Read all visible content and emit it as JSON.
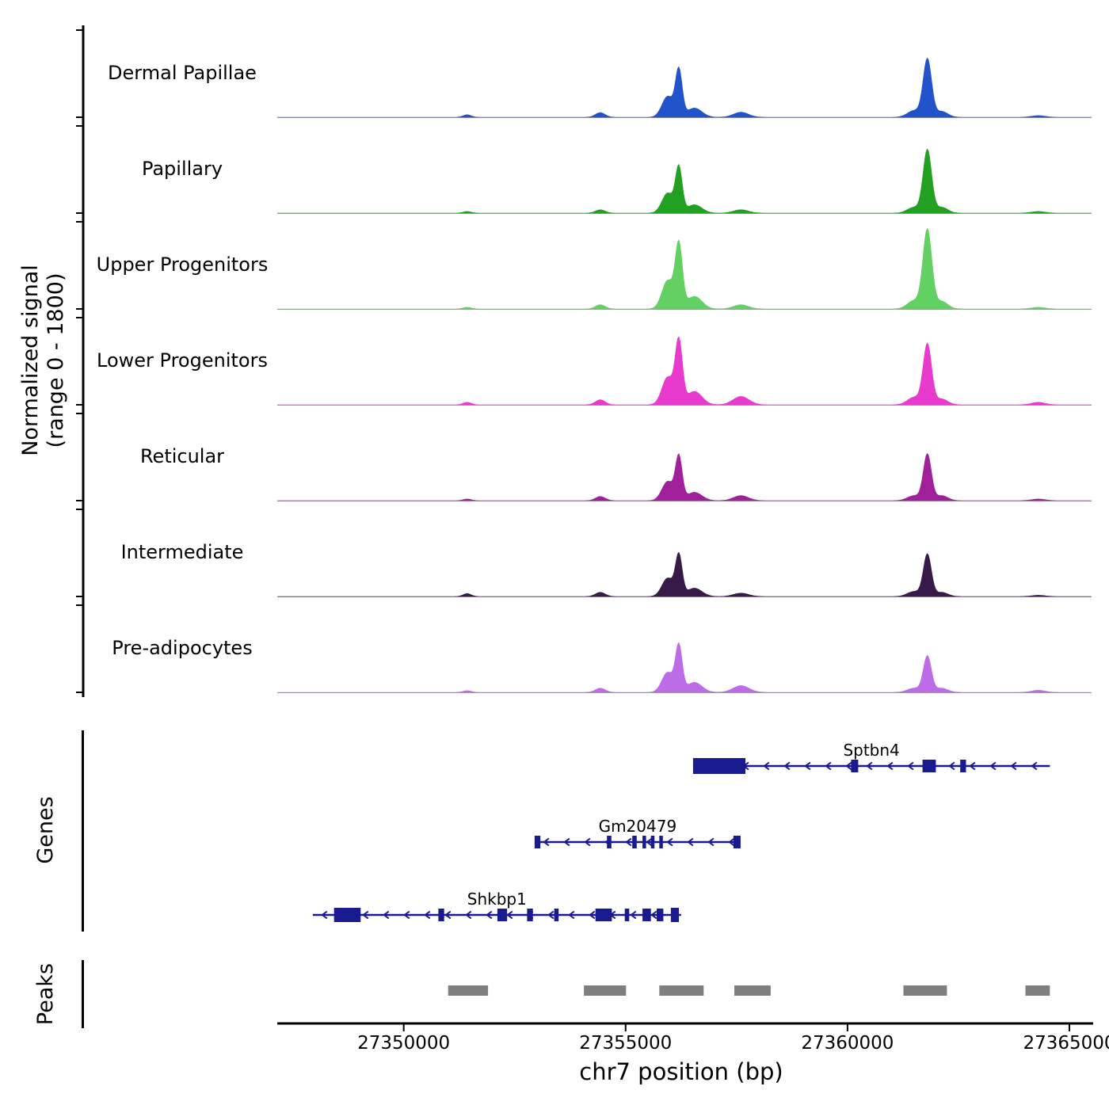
{
  "figure": {
    "ylabel_line1": "Normalized signal",
    "ylabel_line2": "(range 0 - 1800)",
    "genes_axis_label": "Genes",
    "peaks_axis_label": "Peaks"
  },
  "chart_data": {
    "type": "area",
    "title": "",
    "xlabel": "chr7 position (bp)",
    "ylabel": "Normalized signal (range 0 - 1800)",
    "x_range": [
      27347150,
      27365500
    ],
    "x_ticks": [
      27350000,
      27355000,
      27360000,
      27365000
    ],
    "y_range_per_track": [
      0,
      1800
    ],
    "grid": false,
    "gene_color": "#1a1a8f",
    "peak_color": "#7f7f7f",
    "baseline_color": "#9a9a9a",
    "tracks": [
      {
        "label": "Dermal Papillae",
        "color": "#2353cb",
        "peaks": [
          [
            27351430,
            90,
            0.03
          ],
          [
            27354430,
            110,
            0.055
          ],
          [
            27355950,
            130,
            0.25
          ],
          [
            27356200,
            75,
            0.55
          ],
          [
            27356550,
            170,
            0.11
          ],
          [
            27357600,
            170,
            0.06
          ],
          [
            27361500,
            150,
            0.08
          ],
          [
            27361800,
            95,
            0.69
          ],
          [
            27362120,
            140,
            0.07
          ],
          [
            27364300,
            150,
            0.02
          ]
        ]
      },
      {
        "label": "Papillary",
        "color": "#22a022",
        "peaks": [
          [
            27351430,
            90,
            0.02
          ],
          [
            27354430,
            110,
            0.04
          ],
          [
            27355950,
            130,
            0.24
          ],
          [
            27356200,
            75,
            0.53
          ],
          [
            27356550,
            170,
            0.1
          ],
          [
            27357600,
            170,
            0.04
          ],
          [
            27361500,
            150,
            0.07
          ],
          [
            27361800,
            95,
            0.75
          ],
          [
            27362120,
            140,
            0.07
          ],
          [
            27364300,
            150,
            0.02
          ]
        ]
      },
      {
        "label": "Upper Progenitors",
        "color": "#63d063",
        "peaks": [
          [
            27351430,
            90,
            0.02
          ],
          [
            27354430,
            110,
            0.05
          ],
          [
            27355950,
            130,
            0.34
          ],
          [
            27356200,
            80,
            0.75
          ],
          [
            27356550,
            170,
            0.15
          ],
          [
            27357600,
            170,
            0.05
          ],
          [
            27361500,
            150,
            0.1
          ],
          [
            27361800,
            100,
            0.94
          ],
          [
            27362120,
            140,
            0.09
          ],
          [
            27364300,
            150,
            0.02
          ]
        ]
      },
      {
        "label": "Lower Progenitors",
        "color": "#e83bce",
        "peaks": [
          [
            27351430,
            90,
            0.03
          ],
          [
            27354430,
            110,
            0.06
          ],
          [
            27355950,
            130,
            0.33
          ],
          [
            27356200,
            80,
            0.74
          ],
          [
            27356550,
            170,
            0.16
          ],
          [
            27357600,
            180,
            0.1
          ],
          [
            27361500,
            150,
            0.09
          ],
          [
            27361800,
            95,
            0.72
          ],
          [
            27362120,
            140,
            0.07
          ],
          [
            27364300,
            150,
            0.03
          ]
        ]
      },
      {
        "label": "Reticular",
        "color": "#a0209a",
        "peaks": [
          [
            27351430,
            90,
            0.02
          ],
          [
            27354430,
            110,
            0.05
          ],
          [
            27355950,
            130,
            0.23
          ],
          [
            27356200,
            75,
            0.51
          ],
          [
            27356550,
            170,
            0.1
          ],
          [
            27357600,
            170,
            0.06
          ],
          [
            27361500,
            150,
            0.06
          ],
          [
            27361800,
            90,
            0.55
          ],
          [
            27362120,
            140,
            0.06
          ],
          [
            27364300,
            150,
            0.02
          ]
        ]
      },
      {
        "label": "Intermediate",
        "color": "#371a47",
        "peaks": [
          [
            27351430,
            90,
            0.035
          ],
          [
            27354430,
            110,
            0.05
          ],
          [
            27355950,
            130,
            0.22
          ],
          [
            27356200,
            75,
            0.48
          ],
          [
            27356550,
            170,
            0.1
          ],
          [
            27357600,
            170,
            0.04
          ],
          [
            27361500,
            150,
            0.06
          ],
          [
            27361800,
            90,
            0.5
          ],
          [
            27362120,
            140,
            0.05
          ],
          [
            27364300,
            150,
            0.015
          ]
        ]
      },
      {
        "label": "Pre-adipocytes",
        "color": "#bb6ce6",
        "peaks": [
          [
            27351430,
            90,
            0.02
          ],
          [
            27354430,
            110,
            0.05
          ],
          [
            27355950,
            130,
            0.24
          ],
          [
            27356200,
            75,
            0.54
          ],
          [
            27356550,
            170,
            0.12
          ],
          [
            27357600,
            180,
            0.08
          ],
          [
            27361500,
            150,
            0.05
          ],
          [
            27361800,
            90,
            0.43
          ],
          [
            27362120,
            140,
            0.05
          ],
          [
            27364300,
            150,
            0.025
          ]
        ]
      }
    ],
    "genes": [
      {
        "name": "Sptbn4",
        "strand": "-",
        "start": 27356520,
        "end": 27364560,
        "exons": [
          [
            27356520,
            27357700,
            20
          ],
          [
            27360080,
            27360240
          ],
          [
            27361690,
            27361990
          ],
          [
            27362540,
            27362670
          ]
        ]
      },
      {
        "name": "Gm20479",
        "strand": "-",
        "start": 27352950,
        "end": 27357590,
        "exons": [
          [
            27352950,
            27353080
          ],
          [
            27354580,
            27354680
          ],
          [
            27355150,
            27355250
          ],
          [
            27355380,
            27355460
          ],
          [
            27355570,
            27355650
          ],
          [
            27355760,
            27355840
          ],
          [
            27357430,
            27357590
          ]
        ]
      },
      {
        "name": "Shkbp1",
        "strand": "-",
        "start": 27347950,
        "end": 27356250,
        "exons": [
          [
            27348430,
            27349030,
            18
          ],
          [
            27350780,
            27350910
          ],
          [
            27352110,
            27352330
          ],
          [
            27352780,
            27352910
          ],
          [
            27353390,
            27353490
          ],
          [
            27354320,
            27354690
          ],
          [
            27354980,
            27355080
          ],
          [
            27355380,
            27355570
          ],
          [
            27355700,
            27355850
          ],
          [
            27356020,
            27356200,
            18
          ]
        ]
      }
    ],
    "peak_regions": [
      [
        27351000,
        27351900
      ],
      [
        27354060,
        27355010
      ],
      [
        27355760,
        27356760
      ],
      [
        27357450,
        27358270
      ],
      [
        27361260,
        27362240
      ],
      [
        27364010,
        27364560
      ]
    ]
  }
}
